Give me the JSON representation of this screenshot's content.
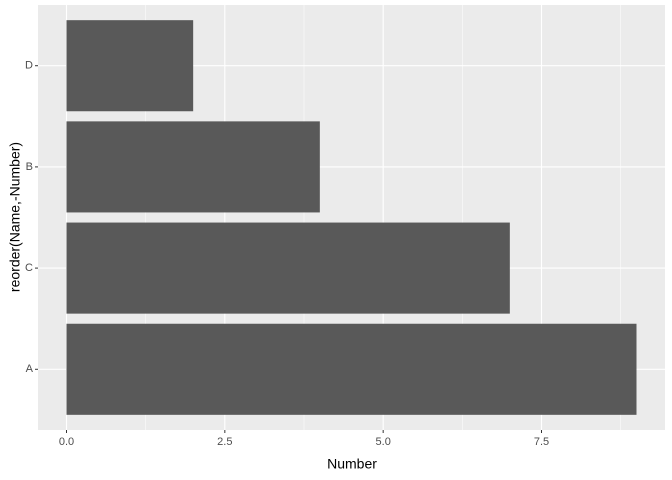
{
  "chart_data": {
    "type": "bar",
    "orientation": "horizontal",
    "categories": [
      "A",
      "C",
      "B",
      "D"
    ],
    "values": [
      9,
      7,
      4,
      2
    ],
    "color": "#595959",
    "xlim": [
      -0.45,
      9.45
    ],
    "xticks": [
      {
        "value": 0,
        "label": "0.0"
      },
      {
        "value": 2.5,
        "label": "2.5"
      },
      {
        "value": 5,
        "label": "5.0"
      },
      {
        "value": 7.5,
        "label": "7.5"
      }
    ],
    "xlabel": "Number",
    "ylabel": "reorder(Name,-Number)",
    "grid": true
  }
}
